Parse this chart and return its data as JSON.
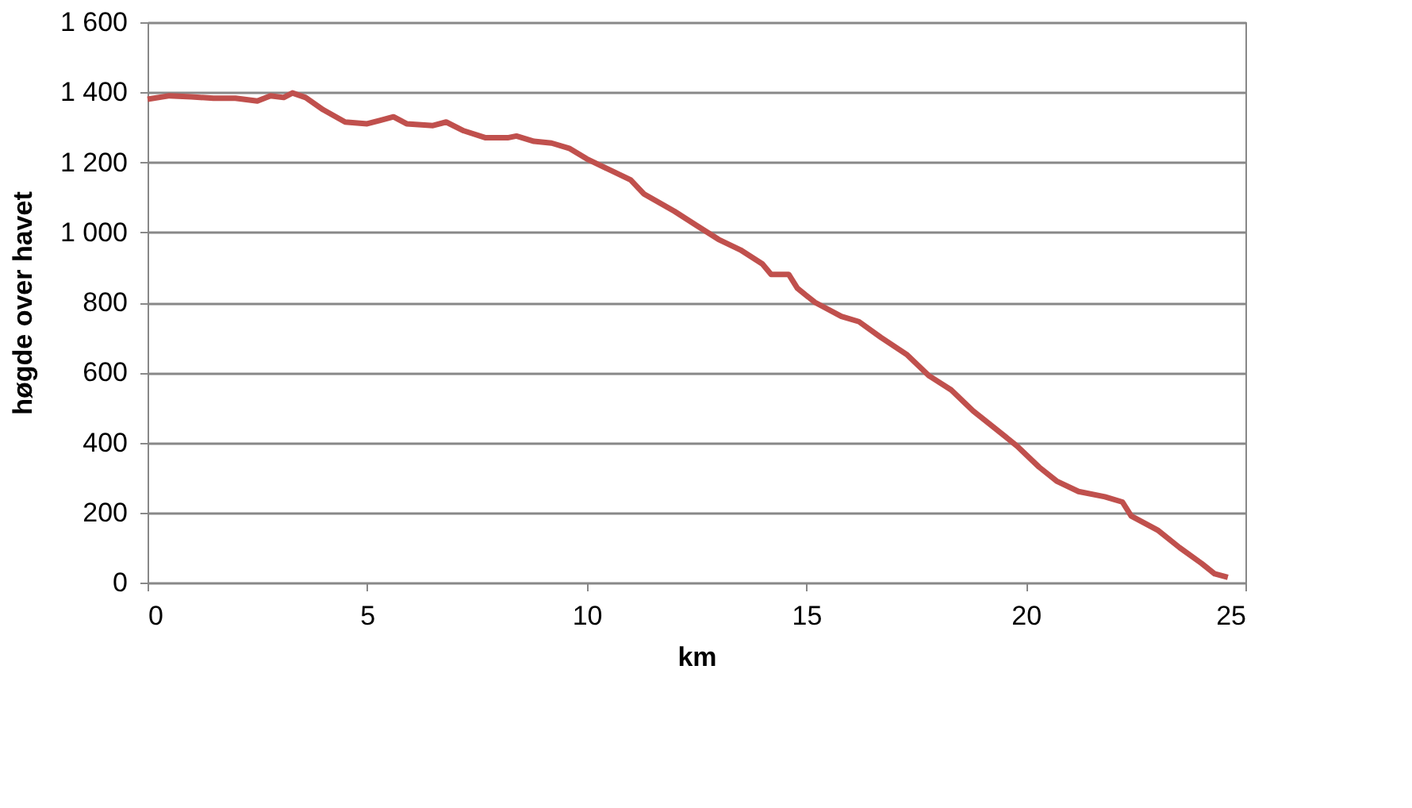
{
  "chart_data": {
    "type": "line",
    "xlabel": "km",
    "ylabel": "høgde over havet",
    "xlim": [
      0,
      25
    ],
    "xticks": [
      0,
      5,
      10,
      15,
      20,
      25
    ],
    "ylim": [
      0,
      1600
    ],
    "yticks": [
      0,
      {
        "value": 200,
        "label": "200"
      },
      {
        "value": 400,
        "label": "400"
      },
      {
        "value": 600,
        "label": "600"
      },
      {
        "value": 800,
        "label": "800"
      },
      {
        "value": 1000,
        "label": "1 000"
      },
      {
        "value": 1200,
        "label": "1 200"
      },
      {
        "value": 1400,
        "label": "1 400"
      },
      {
        "value": 1600,
        "label": "1 600"
      }
    ],
    "grid": "y",
    "legend": false,
    "marker": "none",
    "line_style": "solid",
    "series": [
      {
        "color": "#c0504d",
        "x": [
          0,
          0.5,
          1,
          1.5,
          2,
          2.5,
          2.8,
          3.1,
          3.3,
          3.6,
          4,
          4.5,
          5,
          5.3,
          5.6,
          5.9,
          6.5,
          6.8,
          7.2,
          7.7,
          8.2,
          8.4,
          8.8,
          9.2,
          9.6,
          10,
          10.5,
          11,
          11.3,
          12,
          12.5,
          13,
          13.5,
          14,
          14.2,
          14.6,
          14.8,
          15.2,
          15.8,
          16.2,
          16.7,
          17.3,
          17.8,
          18.3,
          18.8,
          19.3,
          19.8,
          20.3,
          20.7,
          21.2,
          21.8,
          22.2,
          22.4,
          23,
          23.5,
          24,
          24.3,
          24.6
        ],
        "values": [
          1380,
          1390,
          1387,
          1383,
          1383,
          1375,
          1390,
          1385,
          1398,
          1385,
          1350,
          1315,
          1310,
          1320,
          1330,
          1310,
          1305,
          1315,
          1290,
          1270,
          1270,
          1275,
          1260,
          1255,
          1240,
          1210,
          1180,
          1150,
          1110,
          1060,
          1020,
          980,
          950,
          910,
          880,
          880,
          840,
          800,
          760,
          745,
          700,
          650,
          590,
          550,
          490,
          440,
          390,
          330,
          290,
          260,
          245,
          230,
          190,
          150,
          100,
          55,
          25,
          15
        ]
      }
    ]
  }
}
